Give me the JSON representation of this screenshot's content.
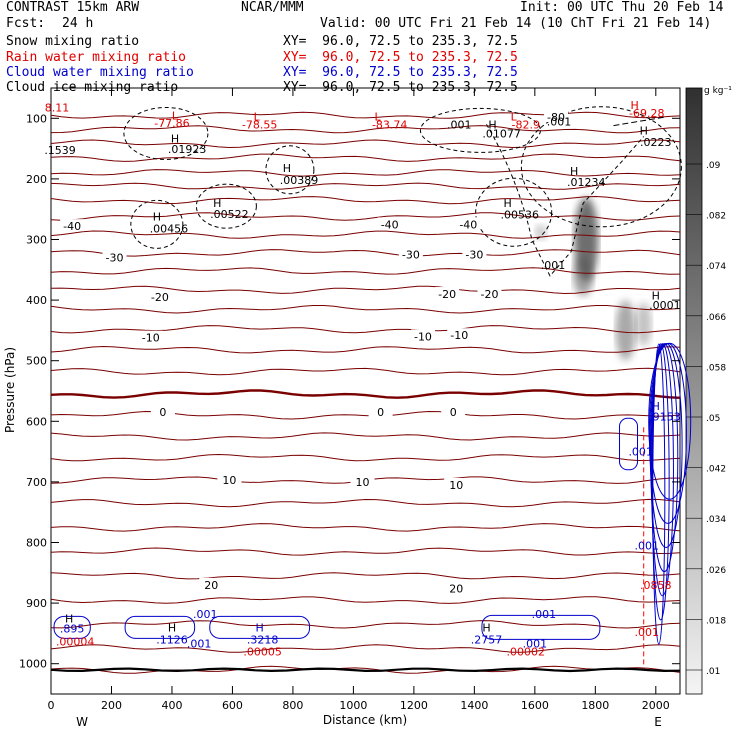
{
  "header": {
    "title": "CONTRAST 15km ARW",
    "center": "NCAR/MMM",
    "init": "Init: 00 UTC Thu 20 Feb 14",
    "fcst_label": "Fcst:",
    "fcst_value": "24 h",
    "valid": "Valid: 00 UTC Fri 21 Feb 14 (10 ChT Fri 21 Feb 14)"
  },
  "fields": [
    {
      "name": "Snow mixing ratio",
      "xy": "XY=  96.0, 72.5 to 235.3, 72.5",
      "color": "#000000"
    },
    {
      "name": "Rain water mixing ratio",
      "xy": "XY=  96.0, 72.5 to 235.3, 72.5",
      "color": "#ff0000"
    },
    {
      "name": "Cloud water mixing ratio",
      "xy": "XY=  96.0, 72.5 to 235.3, 72.5",
      "color": "#0000cc"
    },
    {
      "name": "Cloud ice mixing ratio",
      "xy": "XY=  96.0, 72.5 to 235.3, 72.5",
      "color": "#000000"
    }
  ],
  "chart_data": {
    "type": "contour-cross-section",
    "xlabel": "Distance (km)",
    "ylabel": "Pressure (hPa)",
    "xlim": [
      0,
      2080
    ],
    "ylim": [
      1050,
      50
    ],
    "x_ticks": [
      0,
      200,
      400,
      600,
      800,
      1000,
      1200,
      1400,
      1600,
      1800,
      2000
    ],
    "y_ticks": [
      100,
      200,
      300,
      400,
      500,
      600,
      700,
      800,
      900,
      1000
    ],
    "end_labels": {
      "left": "W",
      "right": "E"
    },
    "colorbar": {
      "unit": "g kg⁻¹",
      "labels": [
        ".09",
        ".082",
        ".074",
        ".066",
        ".058",
        ".05",
        ".042",
        ".034",
        ".026",
        ".018",
        ".01"
      ]
    },
    "temperature_isotherms": {
      "color": "#7a0000",
      "levels": [
        -80,
        -70,
        -60,
        -50,
        -40,
        -30,
        -20,
        -10,
        0,
        10,
        20,
        30
      ],
      "labels": [
        {
          "text": "-80",
          "x": 1670,
          "p": 98
        },
        {
          "text": "-40",
          "x": 70,
          "p": 278
        },
        {
          "text": "-40",
          "x": 1120,
          "p": 275
        },
        {
          "text": "-40",
          "x": 1380,
          "p": 275
        },
        {
          "text": "-30",
          "x": 210,
          "p": 330
        },
        {
          "text": "-30",
          "x": 1190,
          "p": 325
        },
        {
          "text": "-30",
          "x": 1400,
          "p": 325
        },
        {
          "text": "-20",
          "x": 360,
          "p": 395
        },
        {
          "text": "-20",
          "x": 1310,
          "p": 390
        },
        {
          "text": "-20",
          "x": 1450,
          "p": 390
        },
        {
          "text": "-10",
          "x": 330,
          "p": 462
        },
        {
          "text": "-10",
          "x": 1230,
          "p": 460
        },
        {
          "text": "-10",
          "x": 1350,
          "p": 458
        },
        {
          "text": "0",
          "x": 370,
          "p": 585
        },
        {
          "text": "0",
          "x": 1090,
          "p": 585
        },
        {
          "text": "0",
          "x": 1330,
          "p": 585
        },
        {
          "text": "10",
          "x": 590,
          "p": 697
        },
        {
          "text": "10",
          "x": 1030,
          "p": 700
        },
        {
          "text": "10",
          "x": 1340,
          "p": 705
        },
        {
          "text": "20",
          "x": 530,
          "p": 870
        },
        {
          "text": "20",
          "x": 1340,
          "p": 876
        }
      ]
    },
    "annotations": [
      {
        "text": "8.11",
        "x": 20,
        "p": 82,
        "color": "red"
      },
      {
        "text": "L",
        "x": 410,
        "p": 95,
        "color": "red"
      },
      {
        "text": "-77.86",
        "x": 400,
        "p": 108,
        "color": "red"
      },
      {
        "text": "L",
        "x": 680,
        "p": 97,
        "color": "red"
      },
      {
        "text": "-78.55",
        "x": 690,
        "p": 110,
        "color": "red"
      },
      {
        "text": "L",
        "x": 1080,
        "p": 97,
        "color": "red"
      },
      {
        "text": "-83.74",
        "x": 1120,
        "p": 110,
        "color": "red"
      },
      {
        "text": "L",
        "x": 1530,
        "p": 97,
        "color": "red"
      },
      {
        "text": "-82.9",
        "x": 1570,
        "p": 110,
        "color": "red"
      },
      {
        "text": "H",
        "x": 1930,
        "p": 78,
        "color": "red"
      },
      {
        "text": "-69.28",
        "x": 1970,
        "p": 91,
        "color": "red"
      },
      {
        "text": "H",
        "x": 410,
        "p": 133,
        "color": "black"
      },
      {
        "text": ".01923",
        "x": 450,
        "p": 151,
        "color": "black"
      },
      {
        "text": ".1539",
        "x": 30,
        "p": 152,
        "color": "black"
      },
      {
        "text": "H",
        "x": 780,
        "p": 182,
        "color": "black"
      },
      {
        "text": ".00389",
        "x": 820,
        "p": 202,
        "color": "black"
      },
      {
        "text": "H",
        "x": 550,
        "p": 240,
        "color": "black"
      },
      {
        "text": ".00522",
        "x": 590,
        "p": 258,
        "color": "black"
      },
      {
        "text": "H",
        "x": 350,
        "p": 262,
        "color": "black"
      },
      {
        "text": ".00456",
        "x": 390,
        "p": 282,
        "color": "black"
      },
      {
        "text": ".001",
        "x": 1350,
        "p": 110,
        "color": "black"
      },
      {
        "text": "H",
        "x": 1460,
        "p": 110,
        "color": "black"
      },
      {
        "text": ".01077",
        "x": 1490,
        "p": 125,
        "color": "black"
      },
      {
        "text": ".001",
        "x": 1680,
        "p": 105,
        "color": "black"
      },
      {
        "text": "H",
        "x": 1960,
        "p": 120,
        "color": "black"
      },
      {
        "text": ".0223",
        "x": 2000,
        "p": 139,
        "color": "black"
      },
      {
        "text": "H",
        "x": 1730,
        "p": 187,
        "color": "black"
      },
      {
        "text": ".01234",
        "x": 1770,
        "p": 205,
        "color": "black"
      },
      {
        "text": "H",
        "x": 1510,
        "p": 240,
        "color": "black"
      },
      {
        "text": ".00536",
        "x": 1550,
        "p": 259,
        "color": "black"
      },
      {
        "text": ".001",
        "x": 1660,
        "p": 342,
        "color": "black"
      },
      {
        "text": "H",
        "x": 2000,
        "p": 392,
        "color": "black"
      },
      {
        "text": ".0001",
        "x": 2030,
        "p": 408,
        "color": "black"
      },
      {
        "text": "H",
        "x": 2000,
        "p": 575,
        "color": "blue"
      },
      {
        "text": ".9153",
        "x": 2030,
        "p": 592,
        "color": "blue"
      },
      {
        "text": ".001",
        "x": 1950,
        "p": 650,
        "color": "blue"
      },
      {
        "text": ".001",
        "x": 1970,
        "p": 805,
        "color": "blue"
      },
      {
        "text": ".0858",
        "x": 2000,
        "p": 870,
        "color": "red"
      },
      {
        "text": ".001",
        "x": 1970,
        "p": 948,
        "color": "red"
      },
      {
        "text": "H",
        "x": 60,
        "p": 925,
        "color": "black"
      },
      {
        "text": ".895",
        "x": 70,
        "p": 942,
        "color": "blue"
      },
      {
        "text": ".00004",
        "x": 80,
        "p": 963,
        "color": "red"
      },
      {
        "text": "H",
        "x": 400,
        "p": 940,
        "color": "black"
      },
      {
        "text": ".1126",
        "x": 400,
        "p": 960,
        "color": "blue"
      },
      {
        "text": ".001",
        "x": 510,
        "p": 918,
        "color": "blue"
      },
      {
        "text": ".001",
        "x": 490,
        "p": 967,
        "color": "blue"
      },
      {
        "text": "H",
        "x": 690,
        "p": 940,
        "color": "blue"
      },
      {
        "text": ".3218",
        "x": 700,
        "p": 960,
        "color": "blue"
      },
      {
        "text": ".00005",
        "x": 700,
        "p": 980,
        "color": "red"
      },
      {
        "text": "H",
        "x": 1440,
        "p": 940,
        "color": "black"
      },
      {
        "text": ".2757",
        "x": 1440,
        "p": 960,
        "color": "blue"
      },
      {
        "text": ".001",
        "x": 1630,
        "p": 918,
        "color": "blue"
      },
      {
        "text": ".001",
        "x": 1600,
        "p": 967,
        "color": "blue"
      },
      {
        "text": ".00002",
        "x": 1570,
        "p": 980,
        "color": "red"
      }
    ]
  }
}
